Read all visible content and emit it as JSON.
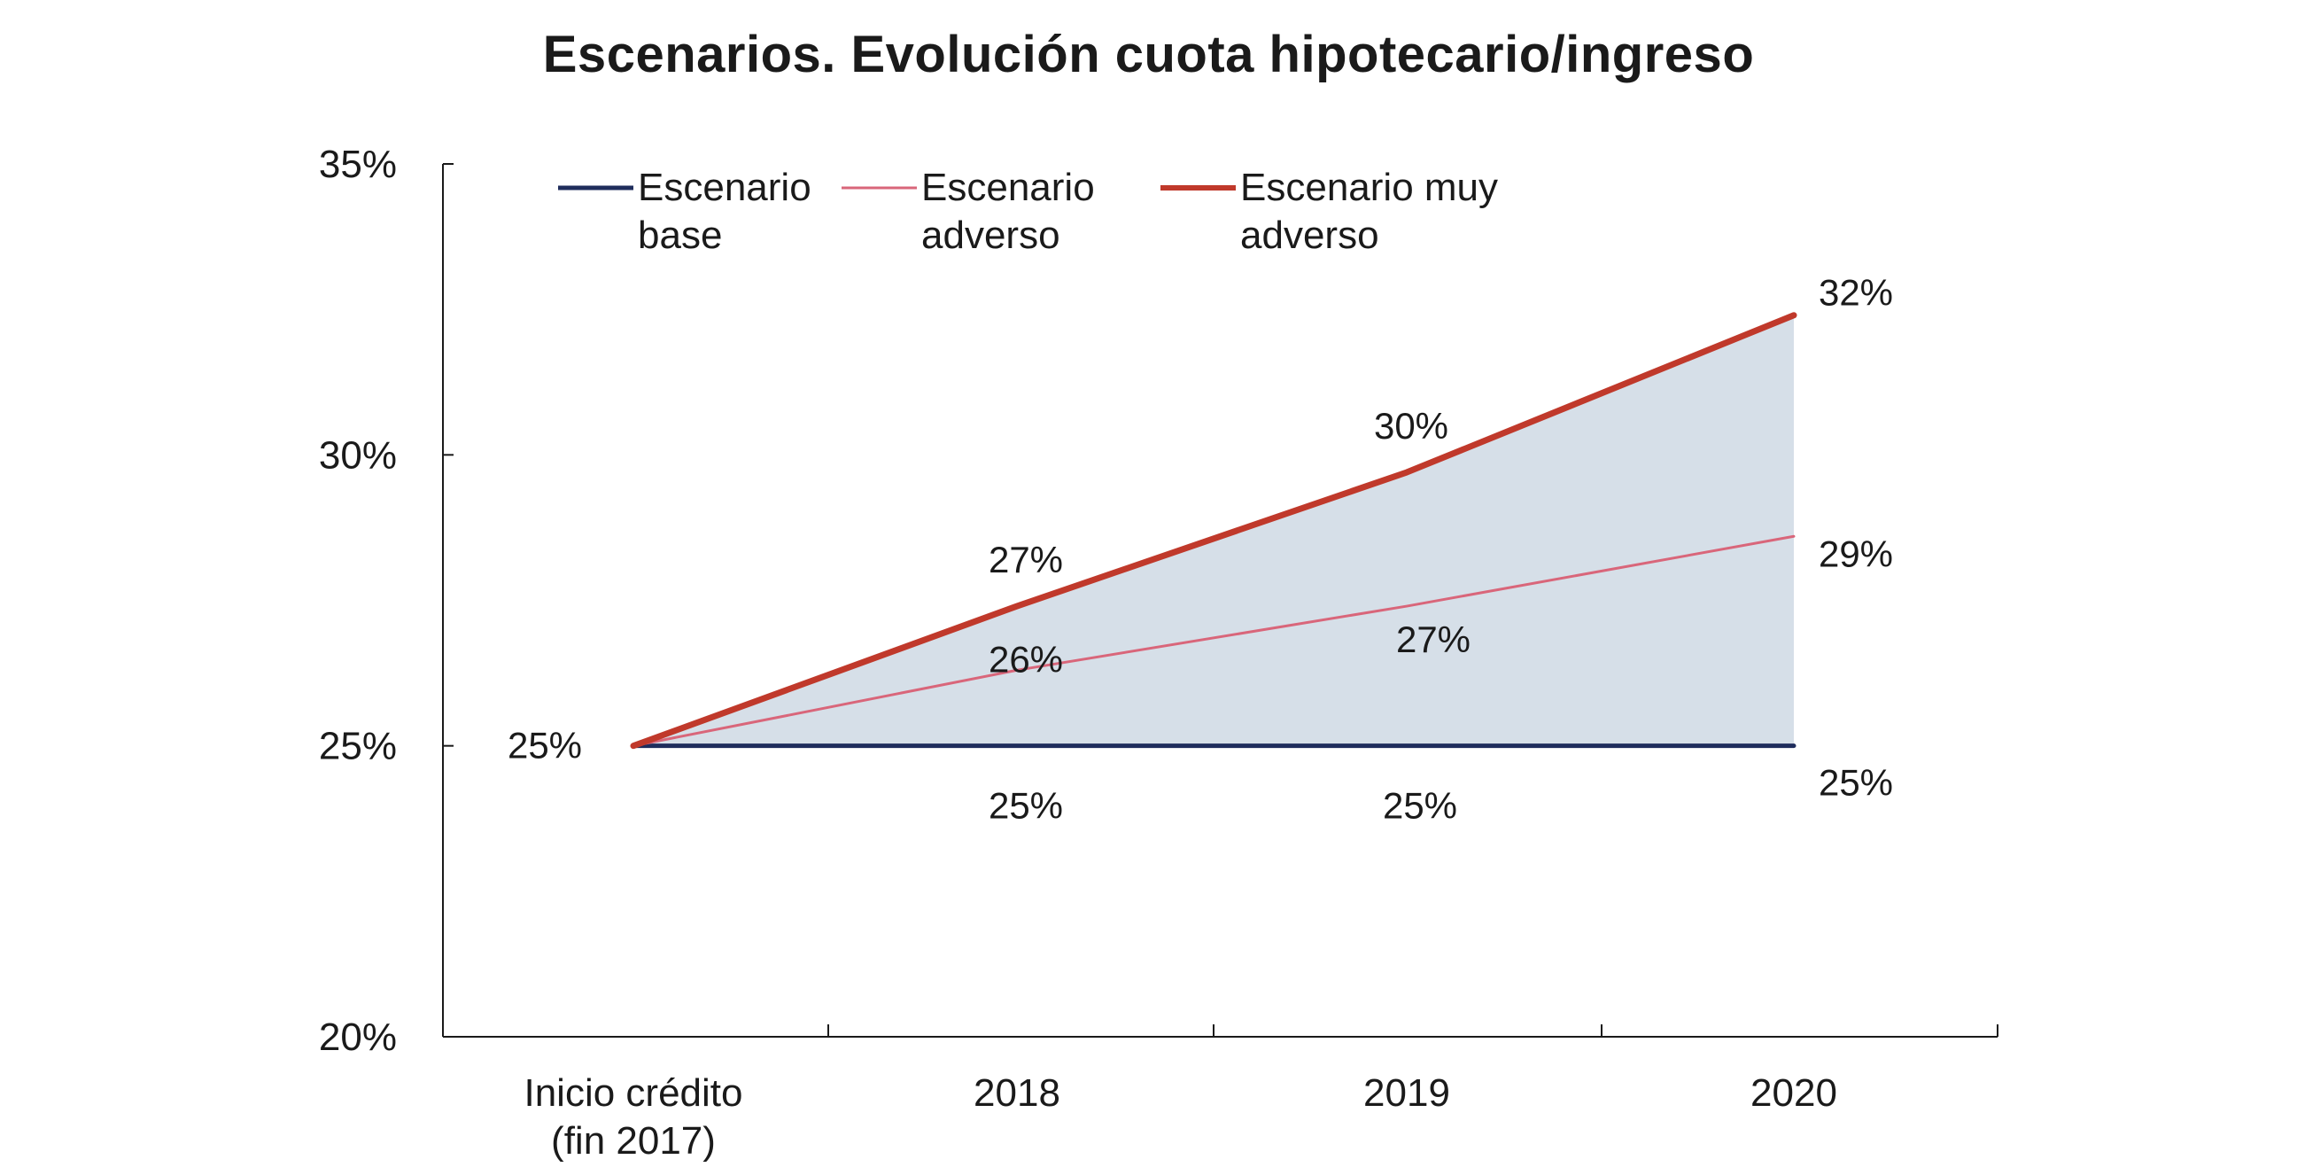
{
  "chart_data": {
    "type": "line",
    "title": "Escenarios. Evolución cuota hipotecario/ingreso",
    "xlabel": "",
    "ylabel": "",
    "categories": [
      [
        "Inicio crédito",
        "(fin 2017)"
      ],
      [
        "2018"
      ],
      [
        "2019"
      ],
      [
        "2020"
      ]
    ],
    "ylim": [
      20,
      35
    ],
    "yticks": [
      "35%",
      "30%",
      "25%",
      "20%"
    ],
    "ytick_values": [
      35,
      30,
      25,
      20
    ],
    "grid": false,
    "legend_position": "top-left",
    "shaded_band": {
      "between": [
        "Escenario base",
        "Escenario muy adverso"
      ],
      "color": "#d6dfe8"
    },
    "series": [
      {
        "name": [
          "Escenario",
          "base"
        ],
        "color": "#1f2d5c",
        "values": [
          25,
          25,
          25,
          25
        ],
        "labels": [
          "25%",
          "25%",
          "25%",
          "25%"
        ]
      },
      {
        "name": [
          "Escenario",
          "adverso"
        ],
        "color": "#d9667a",
        "values": [
          25,
          26.3,
          27.4,
          28.6
        ],
        "labels": [
          "",
          "26%",
          "27%",
          "29%"
        ]
      },
      {
        "name": [
          "Escenario muy",
          "adverso"
        ],
        "color": "#c0392b",
        "values": [
          25,
          27.4,
          29.7,
          32.4
        ],
        "labels": [
          "",
          "27%",
          "30%",
          "32%"
        ]
      }
    ]
  }
}
